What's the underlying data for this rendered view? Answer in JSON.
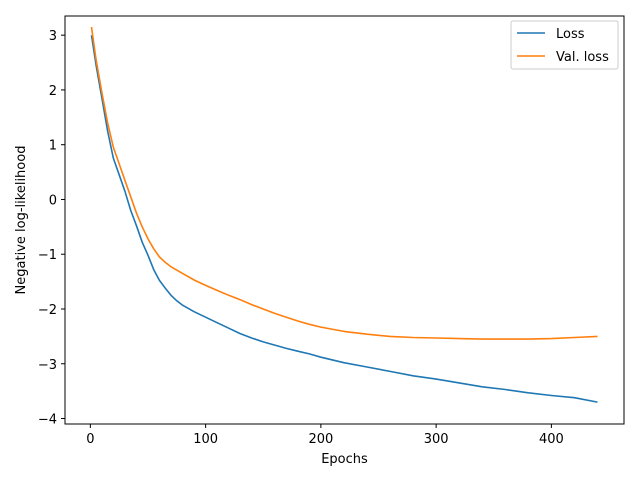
{
  "chart_data": {
    "type": "line",
    "xlabel": "Epochs",
    "ylabel": "Negative log-likelihood",
    "xlim": [
      -22,
      463
    ],
    "ylim": [
      -4.1,
      3.35
    ],
    "xticks": [
      0,
      100,
      200,
      300,
      400
    ],
    "yticks": [
      3,
      2,
      1,
      0,
      -1,
      -2,
      -3,
      -4
    ],
    "xtick_labels": [
      "0",
      "100",
      "200",
      "300",
      "400"
    ],
    "ytick_labels": [
      "3",
      "2",
      "1",
      "0",
      "−1",
      "−2",
      "−3",
      "−4"
    ],
    "grid": false,
    "legend_position": "top-right",
    "series": [
      {
        "name": "Loss",
        "color": "#1f77b4",
        "x": [
          1,
          5,
          10,
          15,
          20,
          25,
          30,
          35,
          40,
          45,
          50,
          55,
          60,
          65,
          70,
          75,
          80,
          90,
          100,
          110,
          120,
          130,
          140,
          150,
          160,
          170,
          180,
          190,
          200,
          220,
          240,
          260,
          280,
          300,
          320,
          340,
          360,
          380,
          400,
          420,
          440
        ],
        "y": [
          3.0,
          2.45,
          1.85,
          1.25,
          0.75,
          0.45,
          0.15,
          -0.2,
          -0.48,
          -0.78,
          -1.02,
          -1.28,
          -1.48,
          -1.62,
          -1.75,
          -1.85,
          -1.93,
          -2.05,
          -2.15,
          -2.25,
          -2.35,
          -2.45,
          -2.53,
          -2.6,
          -2.66,
          -2.72,
          -2.77,
          -2.82,
          -2.88,
          -2.98,
          -3.06,
          -3.14,
          -3.22,
          -3.28,
          -3.35,
          -3.42,
          -3.47,
          -3.53,
          -3.58,
          -3.62,
          -3.7
        ]
      },
      {
        "name": "Val. loss",
        "color": "#ff7f0e",
        "x": [
          1,
          5,
          10,
          15,
          20,
          25,
          30,
          35,
          40,
          45,
          50,
          55,
          60,
          65,
          70,
          80,
          90,
          100,
          110,
          120,
          130,
          140,
          150,
          160,
          170,
          180,
          190,
          200,
          220,
          240,
          260,
          280,
          300,
          320,
          340,
          360,
          380,
          400,
          420,
          440
        ],
        "y": [
          3.15,
          2.55,
          1.95,
          1.4,
          0.95,
          0.65,
          0.35,
          0.05,
          -0.25,
          -0.5,
          -0.72,
          -0.9,
          -1.05,
          -1.15,
          -1.23,
          -1.35,
          -1.47,
          -1.57,
          -1.66,
          -1.75,
          -1.83,
          -1.92,
          -2.0,
          -2.08,
          -2.15,
          -2.22,
          -2.28,
          -2.33,
          -2.41,
          -2.46,
          -2.5,
          -2.52,
          -2.53,
          -2.54,
          -2.55,
          -2.55,
          -2.55,
          -2.54,
          -2.52,
          -2.5
        ]
      }
    ]
  }
}
